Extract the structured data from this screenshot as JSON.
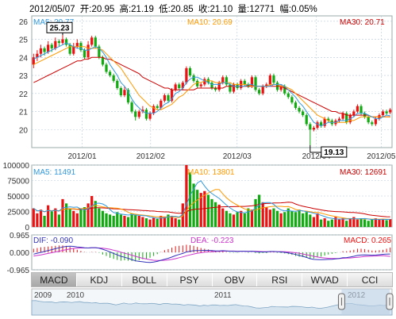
{
  "header": {
    "date": "2012/05/07",
    "open": "开:20.95",
    "high": "高:21.19",
    "low": "低:20.85",
    "close": "收:21.10",
    "volume": "量:12771",
    "change": "幅:0.05%"
  },
  "colors": {
    "up": "#ee1111",
    "down": "#11aa11",
    "ma5": "#3399dd",
    "ma10": "#ff9900",
    "ma30": "#cc0000",
    "dif": "#3333bb",
    "dea": "#cc33cc",
    "grid": "#b8c8d8"
  },
  "price_panel": {
    "ma5_label": "MA5: 20.77",
    "ma10_label": "MA10: 20.69",
    "ma30_label": "MA30: 20.71",
    "max_annotation": "25.23",
    "min_annotation": "19.13"
  },
  "volume_panel": {
    "ma5_label": "MA5: 11491",
    "ma10_label": "MA10: 13801",
    "ma30_label": "MA30: 12691"
  },
  "macd_panel": {
    "dif_label": "DIF: -0.090",
    "dea_label": "DEA: -0.223",
    "macd_label": "MACD: 0.265"
  },
  "tabs": [
    "MACD",
    "KDJ",
    "BOLL",
    "PSY",
    "OBV",
    "RSI",
    "WVAD",
    "CCI"
  ],
  "active_tab": "MACD",
  "navigator": {
    "labels": [
      "2009",
      "2010",
      "2011",
      "2012"
    ]
  },
  "chart_data": [
    {
      "type": "candlestick",
      "title": "",
      "y_ticks": [
        20,
        21,
        22,
        23,
        24,
        25,
        26
      ],
      "ylim": [
        19,
        26.3
      ],
      "x_tick_labels": [
        "2012/01",
        "2012/02",
        "2012/03",
        "2012/04",
        "2012/05"
      ],
      "series": [
        {
          "name": "MA5",
          "value": 20.77
        },
        {
          "name": "MA10",
          "value": 20.69
        },
        {
          "name": "MA30",
          "value": 20.71
        }
      ],
      "annotations": [
        {
          "text": "25.23",
          "value": 25.23
        },
        {
          "text": "19.13",
          "value": 19.13
        }
      ],
      "close": [
        24.0,
        24.2,
        24.5,
        24.3,
        24.7,
        24.5,
        24.9,
        24.8,
        25.0,
        24.7,
        24.2,
        24.6,
        24.8,
        24.4,
        24.0,
        24.7,
        25.1,
        24.6,
        24.0,
        23.6,
        23.2,
        23.0,
        22.7,
        22.3,
        21.9,
        22.2,
        21.5,
        21.0,
        20.7,
        21.0,
        21.1,
        20.6,
        20.9,
        21.3,
        21.2,
        21.6,
        21.9,
        21.6,
        22.2,
        22.5,
        22.3,
        22.6,
        23.4,
        23.0,
        22.7,
        22.4,
        22.5,
        22.8,
        22.6,
        22.3,
        22.2,
        22.6,
        22.9,
        22.5,
        22.1,
        22.5,
        22.3,
        22.7,
        22.5,
        22.4,
        22.9,
        22.2,
        22.0,
        22.4,
        22.5,
        23.0,
        22.6,
        22.2,
        22.4,
        22.0,
        21.8,
        21.5,
        21.2,
        21.0,
        20.8,
        20.3,
        20.0,
        20.1,
        20.4,
        20.2,
        20.6,
        20.5,
        20.3,
        20.5,
        20.6,
        20.9,
        20.4,
        20.8,
        21.0,
        21.3,
        20.9,
        20.7,
        20.4,
        20.3,
        20.6,
        20.8,
        21.0,
        20.9,
        21.1
      ],
      "open": [
        23.6,
        24.0,
        24.2,
        24.5,
        24.3,
        24.7,
        24.5,
        24.9,
        24.8,
        25.0,
        24.7,
        24.2,
        24.6,
        24.8,
        24.4,
        24.0,
        24.7,
        25.1,
        24.6,
        24.0,
        23.6,
        23.2,
        23.0,
        22.7,
        22.3,
        21.9,
        22.2,
        21.5,
        21.0,
        20.7,
        21.0,
        21.1,
        20.6,
        20.9,
        21.3,
        21.2,
        21.6,
        21.9,
        21.6,
        22.2,
        22.5,
        22.3,
        22.6,
        23.4,
        23.0,
        22.7,
        22.4,
        22.5,
        22.8,
        22.6,
        22.3,
        22.2,
        22.6,
        22.9,
        22.5,
        22.1,
        22.5,
        22.3,
        22.7,
        22.5,
        22.4,
        22.9,
        22.2,
        22.0,
        22.4,
        22.5,
        23.0,
        22.6,
        22.2,
        22.4,
        22.0,
        21.8,
        21.5,
        21.2,
        21.0,
        20.8,
        20.3,
        20.0,
        20.1,
        20.4,
        20.2,
        20.6,
        20.5,
        20.3,
        20.5,
        20.6,
        20.9,
        20.4,
        20.8,
        21.0,
        21.3,
        20.9,
        20.7,
        20.4,
        20.3,
        20.6,
        20.8,
        21.0,
        20.95
      ],
      "high": [
        24.2,
        24.4,
        24.7,
        24.6,
        24.9,
        24.8,
        25.1,
        25.0,
        25.23,
        25.1,
        24.8,
        24.8,
        25.0,
        24.9,
        24.5,
        24.9,
        25.2,
        25.2,
        24.7,
        24.1,
        23.7,
        23.3,
        23.1,
        22.8,
        22.4,
        22.4,
        22.3,
        21.6,
        21.1,
        21.1,
        21.3,
        21.2,
        21.0,
        21.4,
        21.4,
        21.7,
        22.0,
        22.0,
        22.3,
        22.6,
        22.6,
        22.7,
        23.5,
        23.5,
        23.1,
        22.8,
        22.6,
        22.9,
        22.9,
        22.7,
        22.4,
        22.7,
        23.0,
        23.0,
        22.6,
        22.6,
        22.6,
        22.8,
        22.8,
        22.6,
        23.0,
        23.0,
        22.3,
        22.5,
        22.6,
        23.1,
        23.1,
        22.7,
        22.5,
        22.5,
        22.1,
        21.9,
        21.6,
        21.3,
        21.1,
        20.9,
        20.4,
        20.2,
        20.5,
        20.5,
        20.7,
        20.7,
        20.6,
        20.6,
        20.7,
        21.0,
        21.0,
        20.9,
        21.1,
        21.4,
        21.4,
        21.0,
        20.8,
        20.5,
        20.7,
        20.9,
        21.1,
        21.1,
        21.19
      ],
      "low": [
        23.4,
        23.8,
        24.0,
        24.1,
        24.2,
        24.3,
        24.4,
        24.6,
        24.7,
        24.6,
        24.1,
        24.1,
        24.5,
        24.3,
        23.9,
        23.9,
        24.6,
        24.5,
        23.9,
        23.5,
        23.1,
        22.9,
        22.6,
        22.2,
        21.8,
        21.8,
        21.4,
        20.9,
        20.5,
        20.6,
        20.9,
        20.5,
        20.5,
        20.8,
        21.1,
        21.1,
        21.5,
        21.5,
        21.5,
        22.1,
        22.2,
        22.2,
        22.5,
        22.9,
        22.6,
        22.3,
        22.3,
        22.4,
        22.5,
        22.2,
        22.1,
        22.1,
        22.5,
        22.4,
        22.0,
        22.0,
        22.2,
        22.2,
        22.4,
        22.3,
        22.3,
        22.1,
        21.9,
        21.9,
        22.3,
        22.4,
        22.5,
        22.1,
        22.1,
        21.9,
        21.7,
        21.4,
        21.1,
        20.9,
        20.7,
        20.2,
        19.13,
        19.9,
        20.0,
        20.1,
        20.1,
        20.4,
        20.2,
        20.2,
        20.4,
        20.5,
        20.3,
        20.3,
        20.7,
        20.9,
        20.8,
        20.6,
        20.3,
        20.2,
        20.2,
        20.5,
        20.7,
        20.8,
        20.85
      ],
      "ma5": [
        23.9,
        24.0,
        24.1,
        24.2,
        24.3,
        24.4,
        24.5,
        24.6,
        24.7,
        24.8,
        24.7,
        24.6,
        24.5,
        24.5,
        24.4,
        24.4,
        24.5,
        24.6,
        24.5,
        24.3,
        24.0,
        23.6,
        23.3,
        23.0,
        22.6,
        22.4,
        22.1,
        21.7,
        21.4,
        21.2,
        21.0,
        20.9,
        20.9,
        20.9,
        21.0,
        21.2,
        21.4,
        21.5,
        21.7,
        22.0,
        22.1,
        22.3,
        22.6,
        22.8,
        22.9,
        22.9,
        22.8,
        22.7,
        22.6,
        22.5,
        22.5,
        22.5,
        22.6,
        22.6,
        22.5,
        22.4,
        22.4,
        22.4,
        22.4,
        22.5,
        22.5,
        22.4,
        22.4,
        22.4,
        22.4,
        22.4,
        22.5,
        22.5,
        22.5,
        22.4,
        22.2,
        22.0,
        21.8,
        21.5,
        21.3,
        21.0,
        20.7,
        20.4,
        20.3,
        20.2,
        20.3,
        20.4,
        20.4,
        20.4,
        20.5,
        20.5,
        20.5,
        20.6,
        20.7,
        20.9,
        20.9,
        20.9,
        20.8,
        20.7,
        20.6,
        20.6,
        20.7,
        20.8,
        20.77
      ],
      "ma10": [
        23.6,
        23.7,
        23.8,
        23.9,
        24.0,
        24.1,
        24.2,
        24.3,
        24.4,
        24.5,
        24.6,
        24.6,
        24.6,
        24.6,
        24.6,
        24.5,
        24.5,
        24.5,
        24.5,
        24.4,
        24.2,
        24.0,
        23.8,
        23.6,
        23.4,
        23.1,
        22.8,
        22.5,
        22.2,
        21.9,
        21.7,
        21.5,
        21.3,
        21.2,
        21.1,
        21.1,
        21.2,
        21.3,
        21.4,
        21.6,
        21.8,
        21.9,
        22.1,
        22.3,
        22.5,
        22.6,
        22.6,
        22.7,
        22.7,
        22.7,
        22.6,
        22.6,
        22.6,
        22.6,
        22.6,
        22.5,
        22.5,
        22.5,
        22.5,
        22.5,
        22.4,
        22.4,
        22.4,
        22.4,
        22.4,
        22.5,
        22.5,
        22.5,
        22.4,
        22.4,
        22.3,
        22.2,
        22.0,
        21.8,
        21.6,
        21.4,
        21.2,
        21.0,
        20.8,
        20.7,
        20.6,
        20.5,
        20.4,
        20.4,
        20.4,
        20.4,
        20.4,
        20.5,
        20.5,
        20.6,
        20.7,
        20.7,
        20.7,
        20.7,
        20.7,
        20.7,
        20.7,
        20.7,
        20.69
      ],
      "ma30": [
        22.6,
        22.7,
        22.8,
        22.9,
        23.0,
        23.1,
        23.2,
        23.3,
        23.4,
        23.5,
        23.6,
        23.7,
        23.8,
        23.8,
        23.9,
        23.9,
        24.0,
        24.0,
        24.0,
        24.0,
        23.9,
        23.9,
        23.8,
        23.7,
        23.6,
        23.5,
        23.4,
        23.3,
        23.2,
        23.1,
        22.9,
        22.8,
        22.7,
        22.6,
        22.5,
        22.4,
        22.3,
        22.3,
        22.2,
        22.2,
        22.2,
        22.2,
        22.2,
        22.2,
        22.2,
        22.3,
        22.3,
        22.3,
        22.3,
        22.3,
        22.3,
        22.3,
        22.3,
        22.4,
        22.4,
        22.4,
        22.4,
        22.4,
        22.4,
        22.4,
        22.4,
        22.4,
        22.4,
        22.4,
        22.4,
        22.4,
        22.4,
        22.4,
        22.4,
        22.3,
        22.2,
        22.1,
        22.0,
        21.9,
        21.8,
        21.7,
        21.6,
        21.5,
        21.4,
        21.3,
        21.2,
        21.1,
        21.0,
        21.0,
        20.9,
        20.9,
        20.8,
        20.8,
        20.8,
        20.8,
        20.8,
        20.8,
        20.8,
        20.7,
        20.7,
        20.7,
        20.7,
        20.7,
        20.71
      ]
    },
    {
      "type": "bar",
      "title": "",
      "y_ticks": [
        0,
        25000,
        50000,
        75000,
        100000
      ],
      "ylim": [
        0,
        100000
      ],
      "series": [
        {
          "name": "MA5",
          "value": 11491
        },
        {
          "name": "MA10",
          "value": 13801
        },
        {
          "name": "MA30",
          "value": 12691
        }
      ],
      "values": [
        30000,
        22000,
        28000,
        18000,
        35000,
        25000,
        30000,
        20000,
        45000,
        38000,
        30000,
        26000,
        22000,
        28000,
        32000,
        38000,
        50000,
        42000,
        30000,
        26000,
        22000,
        20000,
        18000,
        24000,
        20000,
        18000,
        16000,
        22000,
        20000,
        18000,
        16000,
        14000,
        12000,
        15000,
        13000,
        18000,
        16000,
        20000,
        18000,
        14000,
        12000,
        38000,
        100000,
        88000,
        70000,
        60000,
        55000,
        58000,
        52000,
        45000,
        40000,
        36000,
        30000,
        26000,
        22000,
        20000,
        24000,
        26000,
        22000,
        30000,
        28000,
        45000,
        52000,
        40000,
        32000,
        28000,
        30000,
        26000,
        22000,
        24000,
        30000,
        26000,
        24000,
        28000,
        22000,
        24000,
        20000,
        16000,
        22000,
        12000,
        14000,
        10000,
        12000,
        16000,
        12000,
        14000,
        10000,
        14000,
        16000,
        12000,
        14000,
        12000,
        10000,
        12000,
        14000,
        12000,
        12000,
        11000,
        12771
      ]
    },
    {
      "type": "macd",
      "title": "",
      "y_ticks": [
        -0.965,
        0.0,
        0.965
      ],
      "ylim": [
        -0.965,
        0.965
      ],
      "series": [
        {
          "name": "DIF",
          "value": -0.09
        },
        {
          "name": "DEA",
          "value": -0.223
        },
        {
          "name": "MACD",
          "value": 0.265
        }
      ],
      "dif": [
        -0.1,
        -0.05,
        0.0,
        0.05,
        0.1,
        0.15,
        0.2,
        0.25,
        0.3,
        0.33,
        0.34,
        0.33,
        0.3,
        0.28,
        0.25,
        0.24,
        0.26,
        0.26,
        0.23,
        0.17,
        0.1,
        0.02,
        -0.06,
        -0.14,
        -0.22,
        -0.27,
        -0.33,
        -0.4,
        -0.47,
        -0.5,
        -0.52,
        -0.55,
        -0.56,
        -0.54,
        -0.5,
        -0.44,
        -0.38,
        -0.33,
        -0.26,
        -0.18,
        -0.12,
        -0.06,
        0.02,
        0.06,
        0.09,
        0.1,
        0.1,
        0.11,
        0.11,
        0.1,
        0.08,
        0.08,
        0.09,
        0.08,
        0.06,
        0.06,
        0.05,
        0.06,
        0.06,
        0.05,
        0.06,
        0.04,
        0.02,
        0.02,
        0.02,
        0.05,
        0.05,
        0.03,
        0.02,
        0.0,
        -0.03,
        -0.07,
        -0.12,
        -0.17,
        -0.22,
        -0.28,
        -0.35,
        -0.39,
        -0.4,
        -0.41,
        -0.4,
        -0.39,
        -0.38,
        -0.36,
        -0.34,
        -0.3,
        -0.29,
        -0.26,
        -0.22,
        -0.17,
        -0.15,
        -0.14,
        -0.15,
        -0.16,
        -0.15,
        -0.13,
        -0.11,
        -0.1,
        -0.09
      ],
      "dea": [
        -0.2,
        -0.17,
        -0.14,
        -0.1,
        -0.06,
        -0.02,
        0.02,
        0.06,
        0.11,
        0.15,
        0.19,
        0.22,
        0.23,
        0.24,
        0.24,
        0.24,
        0.25,
        0.25,
        0.24,
        0.23,
        0.2,
        0.17,
        0.12,
        0.07,
        0.01,
        -0.05,
        -0.1,
        -0.16,
        -0.22,
        -0.28,
        -0.33,
        -0.37,
        -0.41,
        -0.44,
        -0.45,
        -0.45,
        -0.44,
        -0.42,
        -0.39,
        -0.35,
        -0.3,
        -0.25,
        -0.19,
        -0.14,
        -0.09,
        -0.05,
        -0.02,
        0.01,
        0.03,
        0.04,
        0.05,
        0.06,
        0.06,
        0.07,
        0.07,
        0.07,
        0.06,
        0.06,
        0.06,
        0.06,
        0.06,
        0.06,
        0.05,
        0.04,
        0.04,
        0.04,
        0.04,
        0.04,
        0.04,
        0.03,
        0.02,
        0.0,
        -0.02,
        -0.05,
        -0.09,
        -0.13,
        -0.17,
        -0.22,
        -0.26,
        -0.29,
        -0.31,
        -0.33,
        -0.34,
        -0.34,
        -0.34,
        -0.33,
        -0.32,
        -0.31,
        -0.29,
        -0.27,
        -0.25,
        -0.23,
        -0.22,
        -0.21,
        -0.2,
        -0.19,
        -0.18,
        -0.2,
        -0.223
      ]
    }
  ]
}
